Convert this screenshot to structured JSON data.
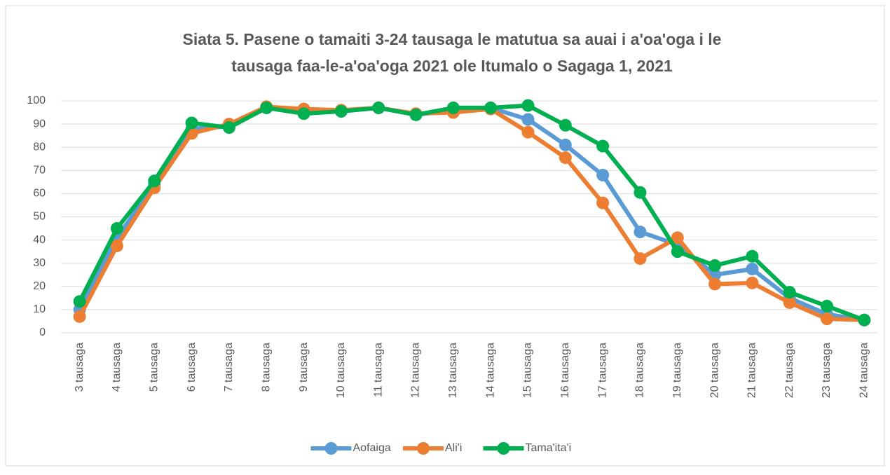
{
  "chart_data": {
    "type": "line",
    "title": [
      "Siata 5. Pasene o tamaiti 3-24 tausaga le matutua sa auai i a'oa'oga i le",
      "tausaga faa-le-a'oa'oga 2021 ole Itumalo o Sagaga 1, 2021"
    ],
    "categories": [
      "3 tausaga",
      "4 tausaga",
      "5 tausaga",
      "6 tausaga",
      "7 tausaga",
      "8 tausaga",
      "9 tausaga",
      "10 tausaga",
      "11 tausaga",
      "12 tausaga",
      "13 tausaga",
      "14 tausaga",
      "15 tausaga",
      "16 tausaga",
      "17 tausaga",
      "18 tausaga",
      "19 tausaga",
      "20 tausaga",
      "21 tausaga",
      "22 tausaga",
      "23 tausaga",
      "24 tausaga"
    ],
    "series": [
      {
        "name": "Aofaiga",
        "color": "#5b9bd5",
        "values": [
          10,
          41,
          64,
          88,
          89,
          97,
          96,
          95.5,
          97,
          94,
          96,
          97,
          92,
          81,
          68,
          43.5,
          38,
          25,
          27.5,
          15,
          8,
          5.5
        ]
      },
      {
        "name": "Ali'i",
        "color": "#ed7d31",
        "values": [
          7,
          37.5,
          62.5,
          86,
          90,
          97.5,
          96.5,
          96,
          97,
          94.5,
          95,
          96.5,
          86.5,
          75.5,
          56,
          32,
          41,
          21,
          21.5,
          13,
          6,
          5.5
        ]
      },
      {
        "name": "Tama'ita'i",
        "color": "#00b050",
        "values": [
          13.5,
          45,
          65.5,
          90.5,
          88.5,
          97,
          94.5,
          95.5,
          97,
          94,
          97,
          97,
          98,
          89.5,
          80.5,
          60.5,
          35,
          29,
          33,
          17.5,
          11.5,
          5.5
        ]
      }
    ],
    "ylim": [
      0,
      100
    ],
    "yticks": [
      0,
      10,
      20,
      30,
      40,
      50,
      60,
      70,
      80,
      90,
      100
    ],
    "grid": true,
    "legend": "bottom"
  }
}
